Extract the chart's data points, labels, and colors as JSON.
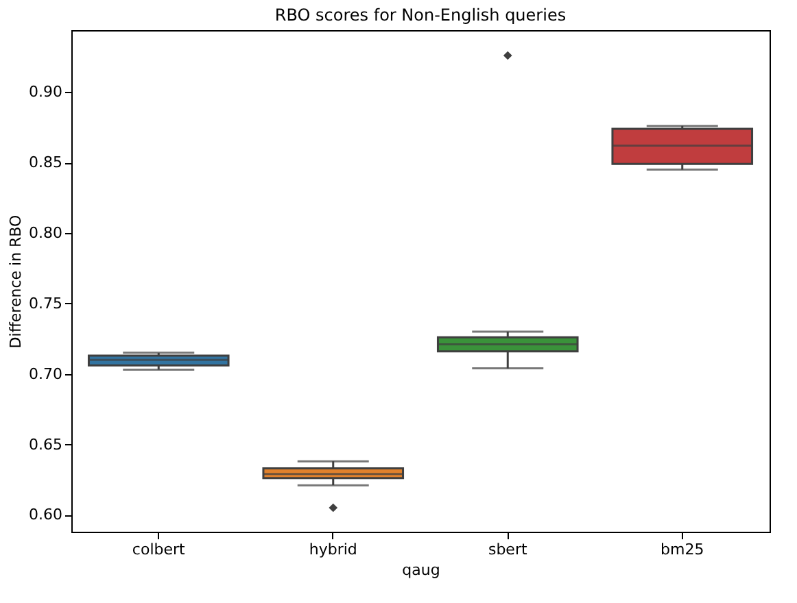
{
  "chart_data": {
    "type": "box",
    "title": "RBO scores for Non-English queries",
    "xlabel": "qaug",
    "ylabel": "Difference in RBO",
    "categories": [
      "colbert",
      "hybrid",
      "sbert",
      "bm25"
    ],
    "colors": [
      "#3274a1",
      "#e1812c",
      "#3a923a",
      "#c03d3e"
    ],
    "boxes": [
      {
        "low": 0.703,
        "q1": 0.706,
        "median": 0.71,
        "q3": 0.713,
        "high": 0.715
      },
      {
        "low": 0.621,
        "q1": 0.626,
        "median": 0.629,
        "q3": 0.633,
        "high": 0.638,
        "outliers": [
          0.605
        ]
      },
      {
        "low": 0.704,
        "q1": 0.716,
        "median": 0.721,
        "q3": 0.726,
        "high": 0.73,
        "outliers": [
          0.926
        ]
      },
      {
        "low": 0.845,
        "q1": 0.849,
        "median": 0.862,
        "q3": 0.874,
        "high": 0.876
      }
    ],
    "ylim": [
      0.588,
      0.944
    ],
    "yticks": [
      {
        "value": 0.6,
        "label": "0.60"
      },
      {
        "value": 0.65,
        "label": "0.65"
      },
      {
        "value": 0.7,
        "label": "0.70"
      },
      {
        "value": 0.75,
        "label": "0.75"
      },
      {
        "value": 0.8,
        "label": "0.80"
      },
      {
        "value": 0.85,
        "label": "0.85"
      },
      {
        "value": 0.9,
        "label": "0.90"
      }
    ],
    "grid": false
  }
}
